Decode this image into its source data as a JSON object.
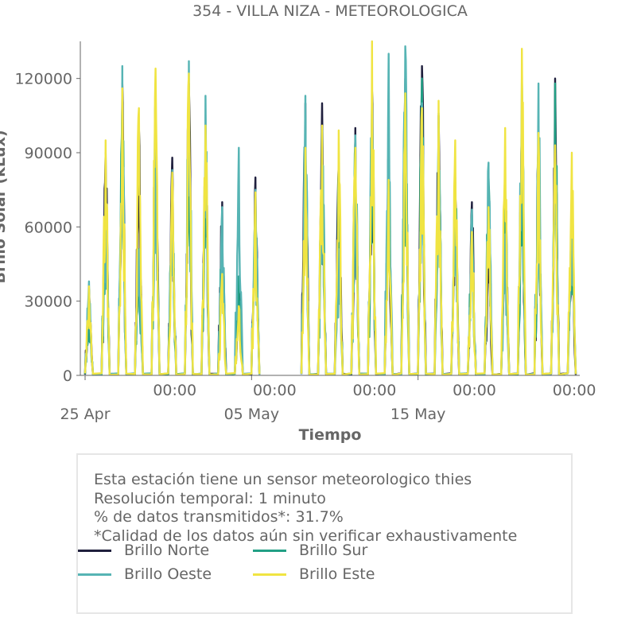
{
  "chart_data": {
    "type": "line",
    "title": "354 - VILLA NIZA - METEOROLOGICA",
    "xlabel": "Tiempo",
    "ylabel": "Brillo Solar (kLux)",
    "ylim": [
      0,
      135000
    ],
    "yticks": [
      0,
      30000,
      60000,
      90000,
      120000
    ],
    "ytick_labels": [
      "0",
      "30000",
      "60000",
      "90000",
      "120000"
    ],
    "xlim": [
      "2024-04-25",
      "2024-05-25"
    ],
    "xticks_major": [
      {
        "date": "2024-04-25",
        "label": "25 Apr"
      },
      {
        "date": "2024-05-05",
        "label": "05 May"
      },
      {
        "date": "2024-05-15",
        "label": "15 May"
      }
    ],
    "xticks_minor": [
      {
        "date": "2024-04-29",
        "label": "00:00"
      },
      {
        "date": "2024-05-05",
        "label": "00:00"
      },
      {
        "date": "2024-05-11",
        "label": "00:00"
      },
      {
        "date": "2024-05-17",
        "label": "00:00"
      },
      {
        "date": "2024-05-23",
        "label": "00:00"
      }
    ],
    "days": [
      "2024-04-25",
      "2024-04-26",
      "2024-04-27",
      "2024-04-28",
      "2024-04-29",
      "2024-04-30",
      "2024-05-01",
      "2024-05-02",
      "2024-05-03",
      "2024-05-04",
      "2024-05-05",
      "2024-05-06",
      "2024-05-07",
      "2024-05-08",
      "2024-05-09",
      "2024-05-10",
      "2024-05-11",
      "2024-05-12",
      "2024-05-13",
      "2024-05-14",
      "2024-05-15",
      "2024-05-16",
      "2024-05-17",
      "2024-05-18",
      "2024-05-19",
      "2024-05-20",
      "2024-05-21",
      "2024-05-22",
      "2024-05-23",
      "2024-05-24"
    ],
    "gap_days": [
      "2024-05-06",
      "2024-05-07"
    ],
    "grid": false,
    "series": [
      {
        "name": "Brillo Norte",
        "color": "#1f1f3d",
        "daily_peak": [
          35000,
          90000,
          118000,
          100000,
          110000,
          88000,
          118000,
          100000,
          70000,
          40000,
          80000,
          0,
          0,
          110000,
          110000,
          85000,
          100000,
          115000,
          90000,
          120000,
          125000,
          105000,
          75000,
          70000,
          50000,
          80000,
          100000,
          95000,
          120000,
          75000
        ]
      },
      {
        "name": "Brillo Sur",
        "color": "#22a085",
        "daily_peak": [
          32000,
          80000,
          110000,
          50000,
          108000,
          80000,
          115000,
          95000,
          60000,
          40000,
          70000,
          0,
          0,
          105000,
          100000,
          85000,
          95000,
          110000,
          90000,
          118000,
          120000,
          102000,
          78000,
          65000,
          80000,
          80000,
          98000,
          90000,
          118000,
          70000
        ]
      },
      {
        "name": "Brillo Oeste",
        "color": "#56b4b4",
        "daily_peak": [
          38000,
          78000,
          125000,
          51000,
          112000,
          83000,
          127000,
          113000,
          68000,
          92000,
          75000,
          0,
          0,
          113000,
          99000,
          51000,
          97000,
          113000,
          130000,
          133000,
          110000,
          106000,
          80000,
          67000,
          86000,
          57000,
          120000,
          118000,
          90000,
          75000
        ]
      },
      {
        "name": "Brillo Este",
        "color": "#f0e442",
        "daily_peak": [
          36000,
          95000,
          116000,
          108000,
          124000,
          82000,
          122000,
          101000,
          41000,
          28000,
          74000,
          0,
          0,
          92000,
          101000,
          99000,
          92000,
          135000,
          79000,
          114000,
          108000,
          111000,
          95000,
          58000,
          68000,
          100000,
          132000,
          98000,
          93000,
          90000
        ]
      }
    ]
  },
  "info": {
    "line1": "Esta estación tiene un sensor meteorologico thies",
    "line2": "Resolución temporal: 1 minuto",
    "line3": "% de datos transmitidos*: 31.7%",
    "line4": "*Calidad de los datos aún sin verificar exhaustivamente"
  },
  "legend": [
    {
      "label": "Brillo Norte",
      "color": "#1f1f3d"
    },
    {
      "label": "Brillo Sur",
      "color": "#22a085"
    },
    {
      "label": "Brillo Oeste",
      "color": "#56b4b4"
    },
    {
      "label": "Brillo Este",
      "color": "#f0e442"
    }
  ]
}
